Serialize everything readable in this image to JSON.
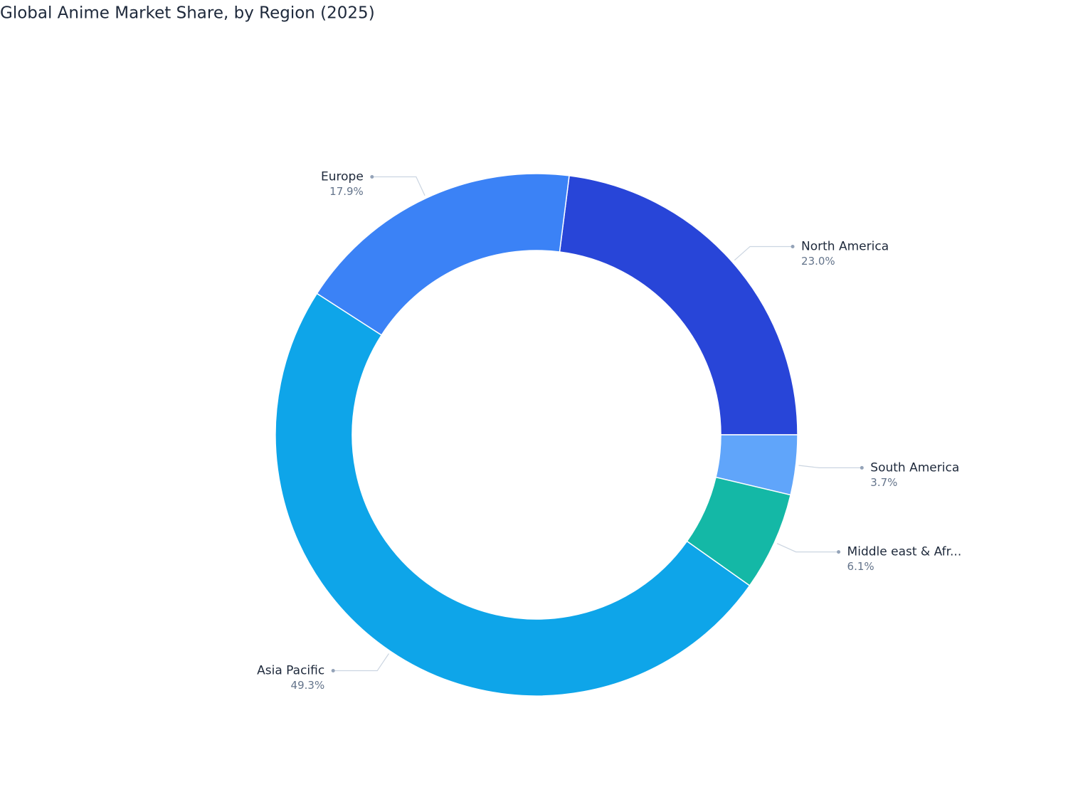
{
  "chart_data": {
    "type": "donut",
    "title": "Global Anime Market Share, by Region (2025)",
    "categories": [
      "North America",
      "South America",
      "Middle east & Afr...",
      "Asia Pacific",
      "Europe"
    ],
    "values": [
      23.0,
      3.7,
      6.1,
      49.3,
      17.9
    ],
    "value_labels": [
      "23.0%",
      "3.7%",
      "6.1%",
      "49.3%",
      "17.9%"
    ],
    "colors": [
      "#2845d8",
      "#60a5fa",
      "#14b8a6",
      "#0ea5e9",
      "#3b82f6"
    ]
  }
}
